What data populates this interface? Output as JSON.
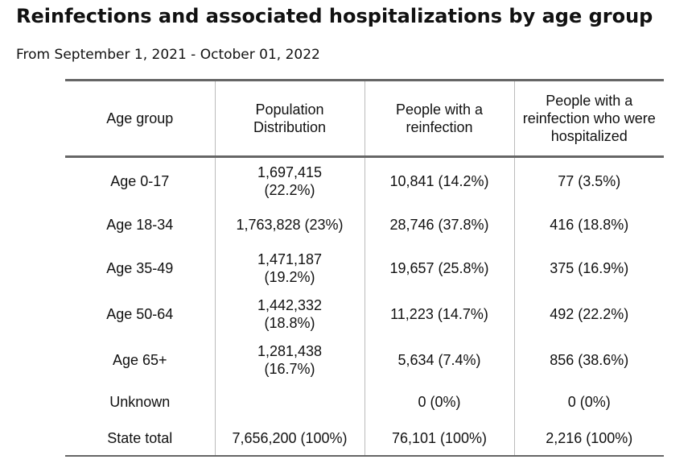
{
  "title": "Reinfections and associated hospitalizations by age group",
  "subtitle": "From September 1, 2021 - October 01, 2022",
  "table": {
    "headers": [
      "Age group",
      "Population Distribution",
      "People with a reinfection",
      "People with a reinfection who were hospitalized"
    ],
    "rows": [
      [
        "Age 0-17",
        "1,697,415 (22.2%)",
        "10,841 (14.2%)",
        "77 (3.5%)"
      ],
      [
        "Age 18-34",
        "1,763,828 (23%)",
        "28,746 (37.8%)",
        "416 (18.8%)"
      ],
      [
        "Age 35-49",
        "1,471,187 (19.2%)",
        "19,657 (25.8%)",
        "375 (16.9%)"
      ],
      [
        "Age 50-64",
        "1,442,332 (18.8%)",
        "11,223 (14.7%)",
        "492 (22.2%)"
      ],
      [
        "Age 65+",
        "1,281,438 (16.7%)",
        "5,634 (7.4%)",
        "856 (38.6%)"
      ],
      [
        "Unknown",
        "",
        "0 (0%)",
        "0 (0%)"
      ],
      [
        "State total",
        "7,656,200 (100%)",
        "76,101 (100%)",
        "2,216 (100%)"
      ]
    ]
  }
}
